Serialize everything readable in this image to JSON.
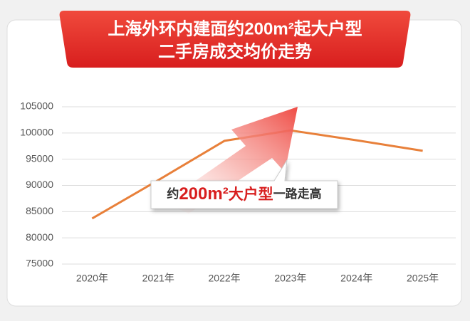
{
  "chart_data": {
    "type": "line",
    "title": "上海外环内建面约200m²起大户型",
    "subtitle": "二手房成交均价走势",
    "annotation": [
      "约",
      "200m²",
      "大户型",
      "一路走高"
    ],
    "categories": [
      "2020年",
      "2021年",
      "2022年",
      "2023年",
      "2024年",
      "2025年"
    ],
    "values": [
      83700,
      91000,
      98500,
      100500,
      98600,
      96600
    ],
    "color": "#e8803a",
    "ylim": [
      75000,
      105000
    ],
    "yticks": [
      75000,
      80000,
      85000,
      90000,
      95000,
      100000,
      105000
    ],
    "grid": true
  }
}
